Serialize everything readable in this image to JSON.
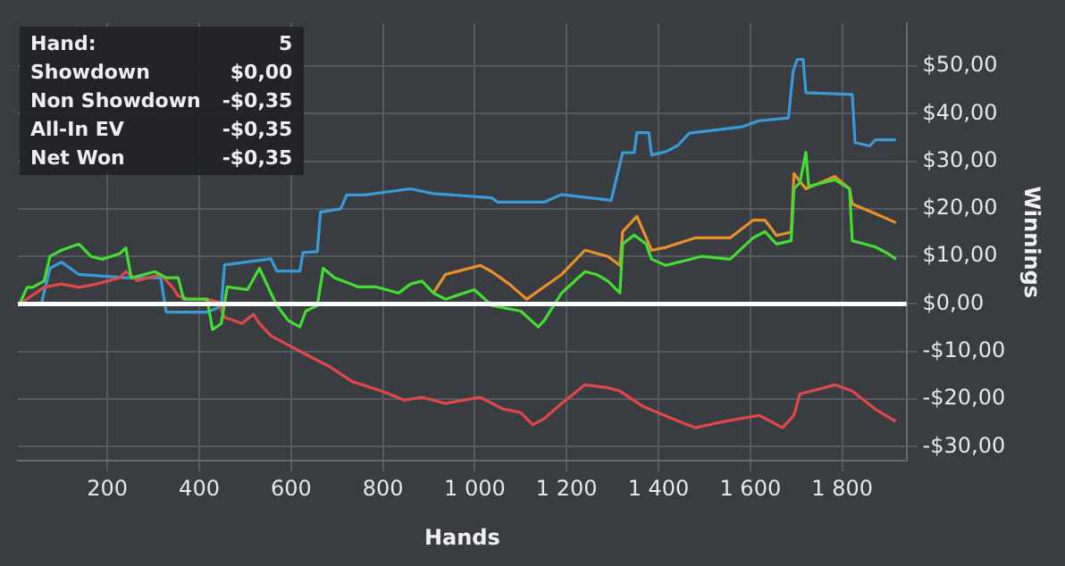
{
  "chart_data": {
    "type": "line",
    "xlabel": "Hands",
    "ylabel": "Winnings",
    "xlim": [
      5,
      1940
    ],
    "ylim": [
      -33,
      59
    ],
    "xticks": [
      200,
      400,
      600,
      800,
      {
        "value": 1000,
        "label": "1 000"
      },
      {
        "value": 1200,
        "label": "1 200"
      },
      {
        "value": 1400,
        "label": "1 400"
      },
      {
        "value": 1600,
        "label": "1 600"
      },
      {
        "value": 1800,
        "label": "1 800"
      }
    ],
    "yticks": [
      {
        "value": -30,
        "label": "-$30,00"
      },
      {
        "value": -20,
        "label": "-$20,00"
      },
      {
        "value": -10,
        "label": "-$10,00"
      },
      {
        "value": 0,
        "label": "$0,00"
      },
      {
        "value": 10,
        "label": "$10,00"
      },
      {
        "value": 20,
        "label": "$20,00"
      },
      {
        "value": 30,
        "label": "$30,00"
      },
      {
        "value": 40,
        "label": "$40,00"
      },
      {
        "value": 50,
        "label": "$50,00"
      }
    ],
    "grid": true,
    "legend": false,
    "marker": "none",
    "line_style": "solid",
    "ref_lines": [
      {
        "axis": "y",
        "value": 0,
        "color": "#ffffff"
      }
    ],
    "annotations": [
      "Hand:",
      "5",
      "Showdown",
      "$0,00",
      "Non Showdown",
      "-$0,35",
      "All-In EV",
      "-$0,35",
      "Net Won",
      "-$0,35"
    ],
    "series": [
      {
        "color": "#3a9ad9",
        "x": [
          9,
          56,
          75,
          100,
          138,
          240,
          316,
          328,
          417,
          448,
          455,
          556,
          569,
          619,
          626,
          657,
          664,
          708,
          721,
          759,
          860,
          910,
          1037,
          1050,
          1151,
          1189,
          1297,
          1322,
          1347,
          1353,
          1379,
          1385,
          1416,
          1442,
          1467,
          1581,
          1619,
          1683,
          1693,
          1702,
          1715,
          1721,
          1822,
          1828,
          1860,
          1872,
          1917
        ],
        "values": [
          0,
          0,
          7.5,
          8.8,
          6.2,
          5.5,
          5.5,
          -1.7,
          -1.7,
          -0.5,
          8.2,
          9.5,
          6.9,
          6.9,
          10.8,
          11,
          19.3,
          20,
          22.9,
          22.9,
          24.2,
          23.2,
          22.3,
          21.4,
          21.4,
          23,
          21.8,
          31.8,
          31.8,
          36,
          36,
          31.3,
          32,
          33.3,
          35.9,
          37.2,
          38.5,
          39.1,
          48.8,
          51.4,
          51.4,
          44.4,
          44,
          33.9,
          33.2,
          34.5,
          34.5
        ]
      },
      {
        "color": "#e04848",
        "x": [
          9,
          62,
          100,
          138,
          176,
          227,
          240,
          265,
          316,
          341,
          354,
          379,
          417,
          442,
          455,
          493,
          518,
          531,
          556,
          607,
          632,
          683,
          733,
          797,
          847,
          885,
          936,
          1012,
          1062,
          1100,
          1126,
          1151,
          1189,
          1240,
          1290,
          1316,
          1366,
          1430,
          1480,
          1543,
          1619,
          1645,
          1670,
          1695,
          1708,
          1733,
          1784,
          1822,
          1872,
          1917
        ],
        "values": [
          0,
          3.5,
          4.2,
          3.5,
          4.2,
          5.5,
          6.8,
          4.9,
          6.2,
          3.6,
          1.7,
          1,
          1,
          0.4,
          -2.8,
          -4.1,
          -2.2,
          -4.1,
          -6.7,
          -9.3,
          -10.6,
          -13.1,
          -16.3,
          -18.3,
          -20.2,
          -19.6,
          -20.9,
          -19.6,
          -22.1,
          -22.8,
          -25.4,
          -24.1,
          -20.9,
          -17,
          -17.6,
          -18.3,
          -21.5,
          -24.1,
          -26,
          -24.7,
          -23.4,
          -24.7,
          -26,
          -23.4,
          -18.9,
          -18.3,
          -17,
          -18.3,
          -22.1,
          -24.7
        ]
      },
      {
        "color": "#e8902a",
        "x": [
          910,
          936,
          1012,
          1037,
          1075,
          1113,
          1151,
          1189,
          1240,
          1290,
          1316,
          1322,
          1353,
          1385,
          1416,
          1480,
          1556,
          1606,
          1632,
          1657,
          1689,
          1695,
          1721,
          1784,
          1816,
          1822,
          1872,
          1917
        ],
        "values": [
          2.3,
          6.2,
          8.1,
          6.8,
          4.2,
          1,
          3.6,
          6.2,
          11.3,
          10,
          8.1,
          15.2,
          18.4,
          11.3,
          11.9,
          13.9,
          13.9,
          17.6,
          17.6,
          14.4,
          15.1,
          27.4,
          24.2,
          26.8,
          24.2,
          21,
          19,
          17.1
        ]
      },
      {
        "color": "#44dd33",
        "x": [
          9,
          25,
          37,
          62,
          75,
          100,
          138,
          164,
          189,
          227,
          240,
          252,
          303,
          328,
          354,
          366,
          417,
          429,
          448,
          461,
          505,
          531,
          556,
          569,
          594,
          619,
          632,
          657,
          670,
          695,
          746,
          784,
          834,
          860,
          885,
          910,
          936,
          999,
          1037,
          1100,
          1138,
          1151,
          1189,
          1240,
          1265,
          1290,
          1316,
          1322,
          1347,
          1373,
          1385,
          1416,
          1493,
          1556,
          1606,
          1632,
          1657,
          1689,
          1695,
          1708,
          1721,
          1727,
          1759,
          1784,
          1816,
          1822,
          1872,
          1898,
          1917
        ],
        "values": [
          0,
          3.5,
          3.5,
          4.8,
          10,
          11.3,
          12.6,
          10,
          9.4,
          10.6,
          11.8,
          5.5,
          6.8,
          5.5,
          5.5,
          1,
          1,
          -5.4,
          -4.1,
          3.6,
          3,
          7.5,
          2.3,
          -0.3,
          -3.5,
          -4.8,
          -1.5,
          -0.3,
          7.5,
          5.5,
          3.6,
          3.6,
          2.3,
          4.2,
          4.8,
          2.3,
          1,
          3,
          -0.3,
          -1.5,
          -4.8,
          -3.5,
          2.3,
          6.8,
          6.2,
          4.8,
          2.3,
          12.6,
          14.5,
          12.6,
          9.4,
          8.1,
          10,
          9.4,
          13.9,
          15.2,
          12.6,
          13.3,
          24.2,
          25.5,
          31.9,
          24.7,
          25.5,
          26.1,
          24.2,
          13.3,
          12,
          10.7,
          9.4
        ]
      }
    ]
  }
}
